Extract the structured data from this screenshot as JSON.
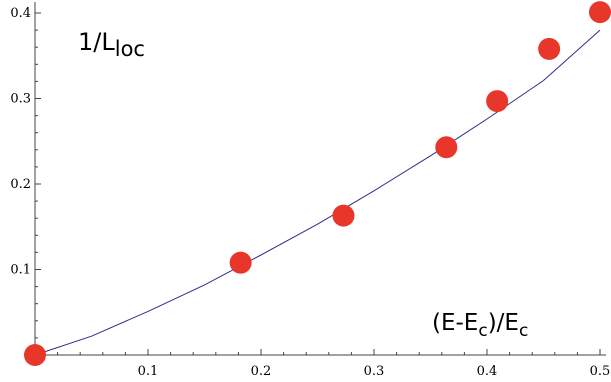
{
  "chart_data": {
    "type": "scatter",
    "xlim": [
      0,
      0.5
    ],
    "ylim": [
      0,
      0.4
    ],
    "x_ticks": [
      "0.1",
      "0.2",
      "0.3",
      "0.4",
      "0.5"
    ],
    "y_ticks": [
      "0.1",
      "0.2",
      "0.3",
      "0.4"
    ],
    "x_tick_values": [
      0.1,
      0.2,
      0.3,
      0.4,
      0.5
    ],
    "y_tick_values": [
      0.1,
      0.2,
      0.3,
      0.4
    ],
    "ylabel": {
      "main": "1/L",
      "sub": "loc"
    },
    "xlabel": {
      "p1": "(E-E",
      "sub": "c",
      "p2": ")/E",
      "sub2": "c"
    },
    "grid": false,
    "series": [
      {
        "kind": "points",
        "color": "#e8362a",
        "x": [
          0.0,
          0.182,
          0.273,
          0.364,
          0.409,
          0.455,
          0.5
        ],
        "y": [
          0.0,
          0.108,
          0.163,
          0.243,
          0.297,
          0.358,
          0.401
        ]
      },
      {
        "kind": "fit-line",
        "color": "#2b2d8c",
        "x": [
          0,
          0.05,
          0.1,
          0.15,
          0.2,
          0.25,
          0.3,
          0.35,
          0.4,
          0.45,
          0.5
        ],
        "y": [
          0,
          0.022,
          0.051,
          0.082,
          0.117,
          0.153,
          0.192,
          0.233,
          0.276,
          0.321,
          0.38
        ]
      }
    ]
  }
}
